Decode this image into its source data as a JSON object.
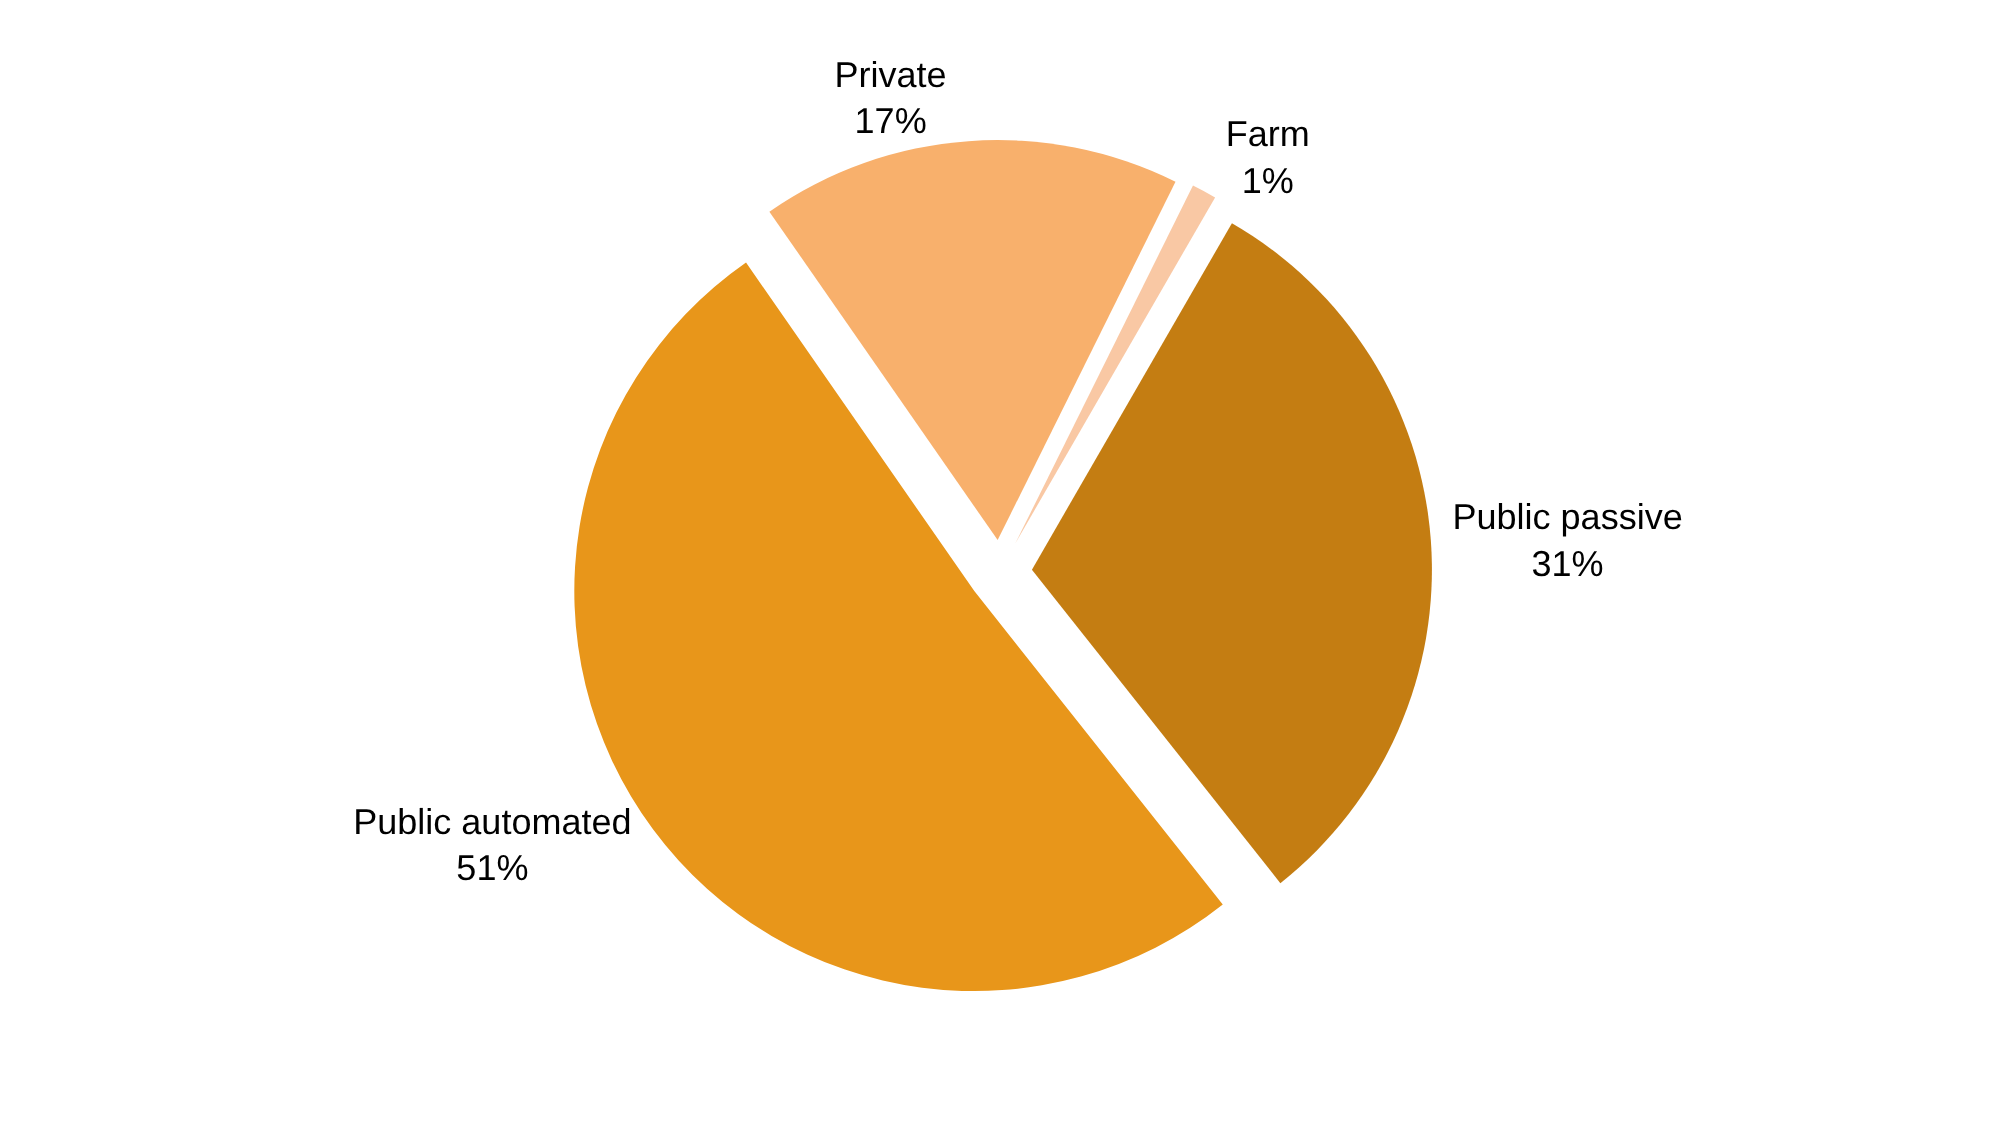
{
  "chart_data": {
    "type": "pie",
    "categories": [
      "Public passive",
      "Public automated",
      "Private",
      "Farm"
    ],
    "values": [
      31,
      51,
      17,
      1
    ],
    "value_labels": [
      "31%",
      "51%",
      "17%",
      "1%"
    ],
    "colors": [
      "#c47d12",
      "#e8961a",
      "#f8b06c",
      "#f9c8a4"
    ],
    "legend": false
  }
}
